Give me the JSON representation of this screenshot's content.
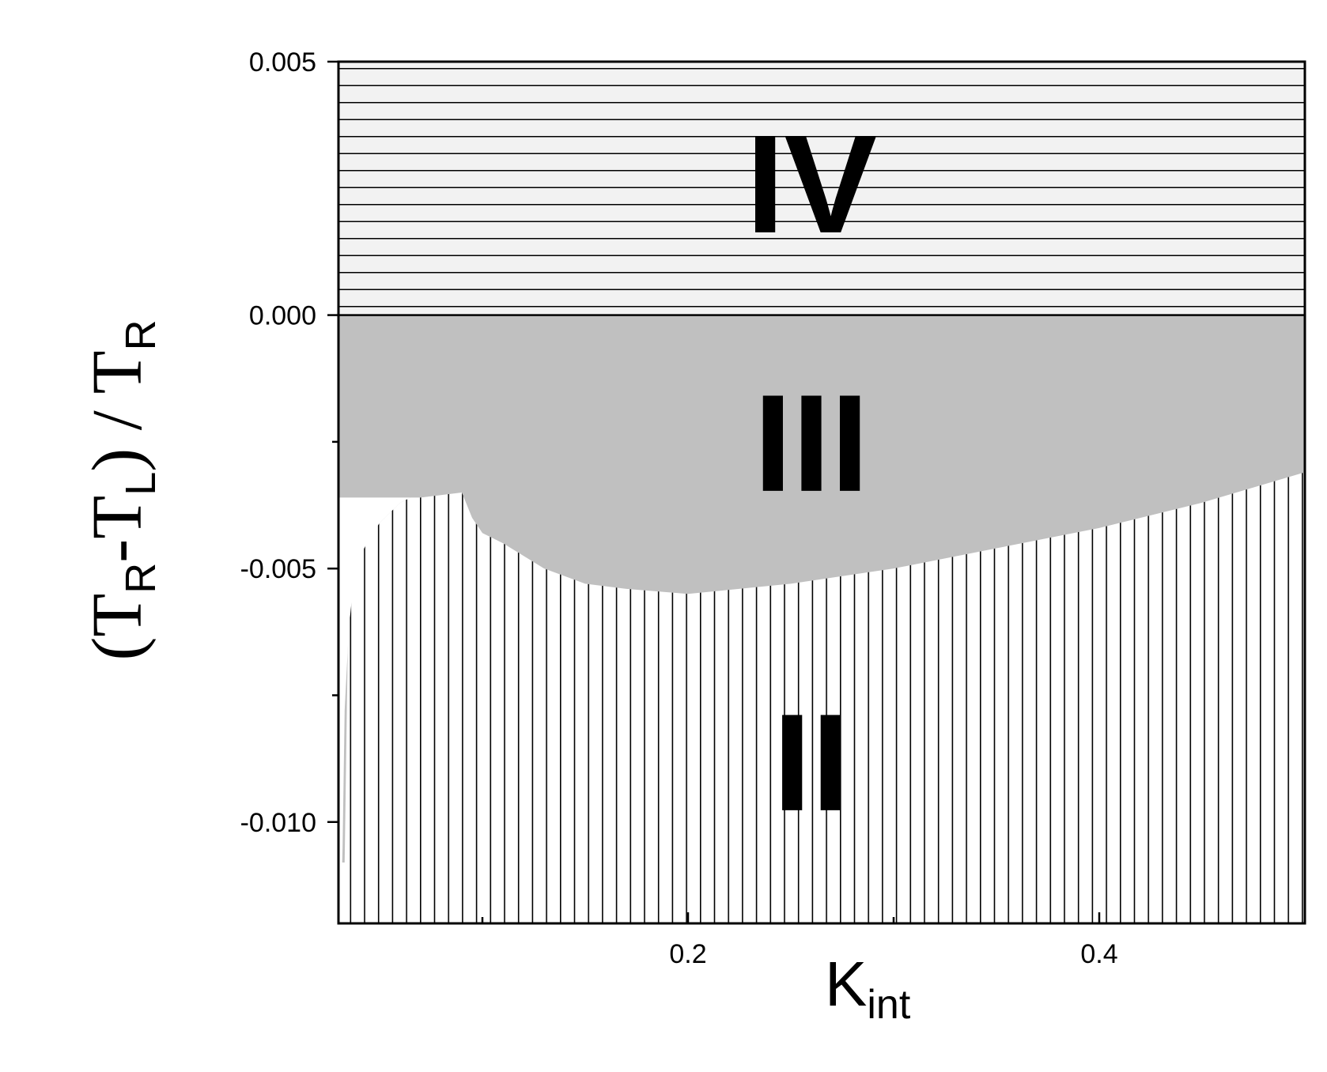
{
  "chart_data": {
    "type": "area",
    "xlabel": {
      "main": "K",
      "sub": "int"
    },
    "ylabel": {
      "open": "(T",
      "sub1": "R",
      "mid": "-T",
      "sub2": "L",
      "close": ") / T",
      "sub3": "R"
    },
    "xlim": [
      0.03,
      0.5
    ],
    "ylim": [
      -0.012,
      0.005
    ],
    "x_ticks": [
      {
        "value": 0.2,
        "label": "0.2"
      },
      {
        "value": 0.4,
        "label": "0.4"
      }
    ],
    "x_minor_ticks": [
      0.1,
      0.3
    ],
    "y_ticks": [
      {
        "value": 0.005,
        "label": "0.005"
      },
      {
        "value": 0.0,
        "label": "0.000"
      },
      {
        "value": -0.005,
        "label": "-0.005"
      },
      {
        "value": -0.01,
        "label": "-0.010"
      }
    ],
    "y_minor_ticks": [
      -0.0025,
      -0.0075
    ],
    "regions": [
      {
        "label": "IV",
        "pattern": "horizontal-hatch",
        "fill": "#f2f2f2",
        "label_at": [
          0.26,
          0.0026
        ]
      },
      {
        "label": "III",
        "pattern": "solid",
        "fill": "#c0c0c0",
        "label_at": [
          0.26,
          -0.0025
        ]
      },
      {
        "label": "II",
        "pattern": "vertical-hatch",
        "fill": "#ffffff",
        "label_at": [
          0.26,
          -0.0088
        ]
      }
    ],
    "boundary_IV_III": 0.0,
    "boundary_III_II": {
      "x": [
        0.033,
        0.035,
        0.04,
        0.045,
        0.05,
        0.055,
        0.06,
        0.065,
        0.07,
        0.09,
        0.095,
        0.1,
        0.11,
        0.13,
        0.15,
        0.17,
        0.2,
        0.25,
        0.3,
        0.35,
        0.4,
        0.45,
        0.5
      ],
      "y": [
        -0.0108,
        -0.0052,
        -0.0046,
        -0.0043,
        -0.0041,
        -0.0039,
        -0.0037,
        -0.0036,
        -0.0036,
        -0.0035,
        -0.004,
        -0.0043,
        -0.0045,
        -0.005,
        -0.0053,
        -0.0054,
        -0.0055,
        -0.0053,
        -0.005,
        -0.0046,
        -0.0042,
        -0.0037,
        -0.0031
      ]
    },
    "left_white_edge": {
      "x": [
        0.031,
        0.032,
        0.033,
        0.035,
        0.037,
        0.04,
        0.045,
        0.05,
        0.055,
        0.06,
        0.065
      ],
      "y": [
        -0.012,
        -0.0105,
        -0.0078,
        -0.0062,
        -0.0054,
        -0.0048,
        -0.0044,
        -0.0041,
        -0.0039,
        -0.0037,
        -0.0036
      ]
    }
  }
}
